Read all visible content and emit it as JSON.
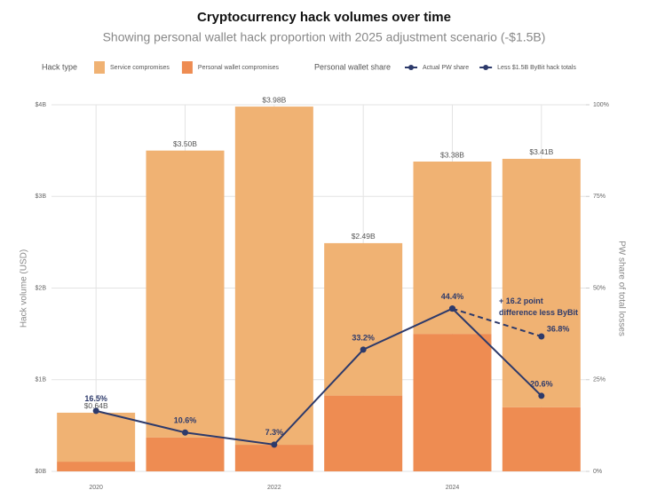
{
  "chart_data": {
    "type": "bar",
    "title": "Cryptocurrency hack volumes over time",
    "subtitle": "Showing personal wallet hack proportion with 2025 adjustment scenario (-$1.5B)",
    "categories": [
      "2020",
      null,
      "2022",
      null,
      "2024",
      null
    ],
    "legend_titles": [
      "Hack type",
      "Personal wallet share"
    ],
    "series": [
      {
        "name": "Service compromises",
        "type": "bar",
        "color": "#f0b273",
        "values": [
          0.534,
          3.129,
          3.69,
          1.663,
          1.88,
          2.71
        ]
      },
      {
        "name": "Personal wallet compromises",
        "type": "bar",
        "color": "#ee8c52",
        "values": [
          0.106,
          0.371,
          0.29,
          0.827,
          1.5,
          0.7
        ]
      },
      {
        "name": "Actual PW share",
        "type": "line",
        "axis": "y2",
        "color": "#2d3a6b",
        "values": [
          16.5,
          10.6,
          7.3,
          33.2,
          44.4,
          20.6
        ],
        "value_labels": [
          "16.5%",
          "10.6%",
          "7.3%",
          "33.2%",
          "44.4%",
          "20.6%"
        ]
      },
      {
        "name": "Less $1.5B ByBit hack totals",
        "type": "line",
        "axis": "y2",
        "dashed": true,
        "color": "#2d3a6b",
        "values": [
          null,
          null,
          null,
          null,
          44.4,
          36.8
        ],
        "value_labels": [
          null,
          null,
          null,
          null,
          null,
          "36.8%"
        ]
      }
    ],
    "totals": {
      "values": [
        0.64,
        3.5,
        3.98,
        2.49,
        3.38,
        3.41
      ],
      "value_labels": [
        "$0.64B",
        "$3.50B",
        "$3.98B",
        "$2.49B",
        "$3.38B",
        "$3.41B"
      ]
    },
    "annotation": "+ 16.2 point difference less ByBit",
    "ylabel": "Hack volume (USD)",
    "y2label": "PW share of total losses",
    "ylim": [
      0,
      4
    ],
    "yticks": [
      {
        "value": 0,
        "label": "$0B"
      },
      {
        "value": 1,
        "label": "$1B"
      },
      {
        "value": 2,
        "label": "$2B"
      },
      {
        "value": 3,
        "label": "$3B"
      },
      {
        "value": 4,
        "label": "$4B"
      }
    ],
    "y2lim": [
      0,
      100
    ],
    "y2ticks": [
      {
        "value": 0,
        "label": "0%"
      },
      {
        "value": 25,
        "label": "25%"
      },
      {
        "value": 50,
        "label": "50%"
      },
      {
        "value": 75,
        "label": "75%"
      },
      {
        "value": 100,
        "label": "100%"
      }
    ],
    "grid": true
  }
}
